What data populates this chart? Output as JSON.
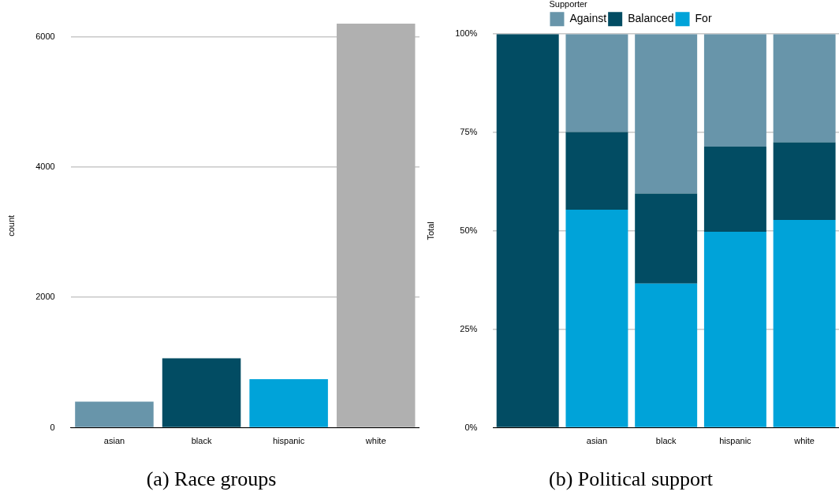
{
  "chart_data": [
    {
      "type": "bar",
      "title": "(a) Race groups",
      "ylabel": "count",
      "categories": [
        "asian",
        "black",
        "hispanic",
        "white"
      ],
      "values": [
        400,
        1065,
        745,
        6200
      ],
      "colors": [
        "#6895aa",
        "#024c63",
        "#00a3d9",
        "#b0b0b0"
      ],
      "ylim": [
        0,
        6200
      ],
      "yticks": [
        0,
        2000,
        4000,
        6000
      ],
      "grid": "y",
      "legend": false
    },
    {
      "type": "bar",
      "title": "(b) Political support",
      "ylabel": "Total",
      "legend_title": "Supporter",
      "legend": "top",
      "stacked": true,
      "categories": [
        null,
        "asian",
        "black",
        "hispanic",
        "white"
      ],
      "series": [
        {
          "name": "For",
          "color": "#00a3d9",
          "values": [
            0,
            55.4,
            36.6,
            49.8,
            52.8
          ]
        },
        {
          "name": "Balanced",
          "color": "#024c63",
          "values": [
            100,
            19.7,
            22.9,
            21.6,
            19.7
          ]
        },
        {
          "name": "Against",
          "color": "#6895aa",
          "values": [
            0,
            24.9,
            40.5,
            28.6,
            27.5
          ]
        }
      ],
      "ylim": [
        0,
        100
      ],
      "yticks": [
        {
          "value": 0,
          "label": "0%"
        },
        {
          "value": 25,
          "label": "25%"
        },
        {
          "value": 50,
          "label": "50%"
        },
        {
          "value": 75,
          "label": "75%"
        },
        {
          "value": 100,
          "label": "100%"
        }
      ],
      "grid": "y"
    }
  ]
}
